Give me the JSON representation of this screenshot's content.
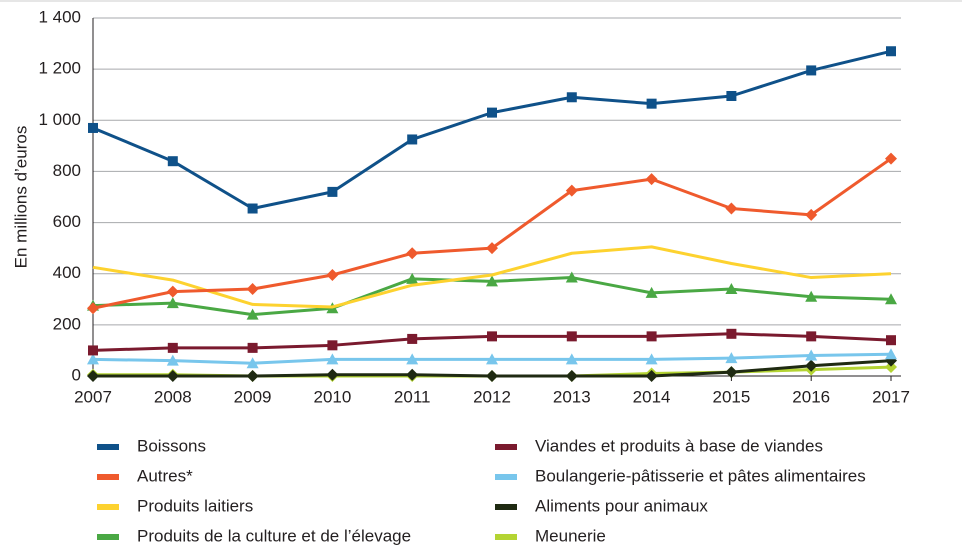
{
  "chart_data": {
    "type": "line",
    "y_label": "En millions d’euros",
    "categories": [
      "2007",
      "2008",
      "2009",
      "2010",
      "2011",
      "2012",
      "2013",
      "2014",
      "2015",
      "2016",
      "2017"
    ],
    "ylim": [
      0,
      1400
    ],
    "yticks": [
      0,
      200,
      400,
      600,
      800,
      {
        "value": 1000,
        "label": "1 000"
      },
      {
        "value": 1200,
        "label": "1 200"
      },
      {
        "value": 1400,
        "label": "1 400"
      }
    ],
    "grid": true,
    "legend": "bottom",
    "series": [
      {
        "name": "Boissons",
        "color": "#0f5189",
        "marker": "square",
        "values": [
          970,
          840,
          655,
          720,
          925,
          1030,
          1090,
          1065,
          1095,
          1195,
          1270
        ]
      },
      {
        "name": "Autres*",
        "color": "#ef5a2d",
        "marker": "diamond",
        "values": [
          265,
          330,
          340,
          395,
          480,
          500,
          725,
          770,
          655,
          630,
          850
        ]
      },
      {
        "name": "Produits laitiers",
        "color": "#fdd22f",
        "marker": "none",
        "values": [
          425,
          375,
          280,
          270,
          355,
          395,
          480,
          505,
          440,
          385,
          400
        ]
      },
      {
        "name": "Produits de la culture et de l’élevage",
        "color": "#4aa844",
        "marker": "triangle",
        "values": [
          275,
          285,
          240,
          265,
          380,
          370,
          385,
          325,
          340,
          310,
          300
        ]
      },
      {
        "name": "Viandes et produits à base de viandes",
        "color": "#7a1a2e",
        "marker": "square",
        "values": [
          100,
          110,
          110,
          120,
          145,
          155,
          155,
          155,
          165,
          155,
          140
        ]
      },
      {
        "name": "Boulangerie-pâtisserie et pâtes alimentaires",
        "color": "#78c6ec",
        "marker": "triangle",
        "values": [
          65,
          60,
          50,
          65,
          65,
          65,
          65,
          65,
          70,
          80,
          85
        ]
      },
      {
        "name": "Aliments pour animaux",
        "color": "#1f2a12",
        "marker": "diamond",
        "values": [
          0,
          0,
          0,
          5,
          5,
          0,
          0,
          0,
          15,
          40,
          60
        ]
      },
      {
        "name": "Meunerie",
        "color": "#b4d433",
        "marker": "diamond",
        "values": [
          5,
          5,
          0,
          0,
          0,
          0,
          0,
          10,
          15,
          25,
          35
        ]
      }
    ]
  }
}
